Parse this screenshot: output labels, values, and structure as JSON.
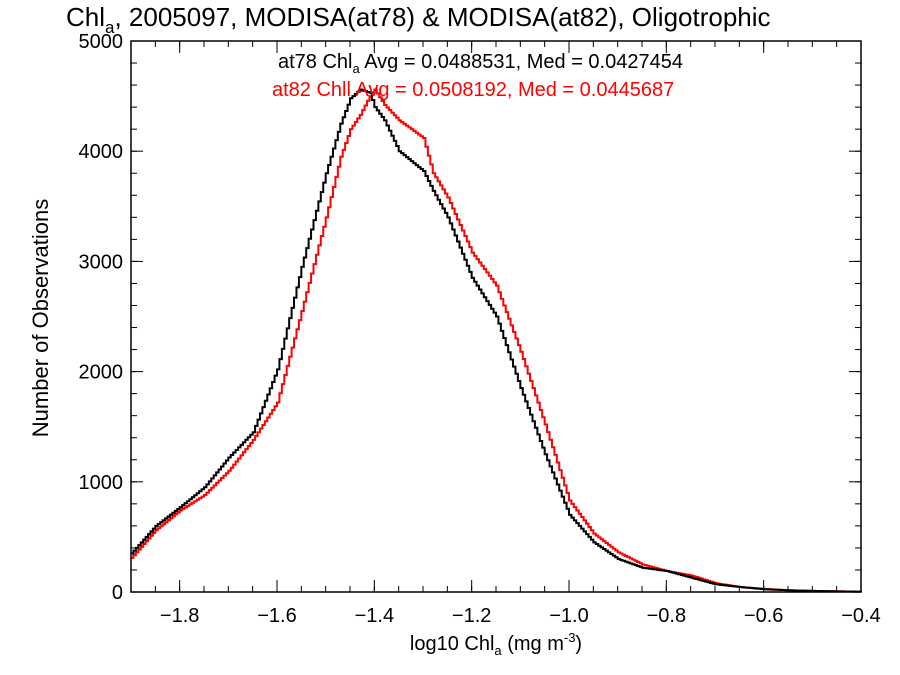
{
  "chart_data": {
    "type": "line",
    "title": {
      "prefix": "Chl",
      "sub": "a",
      "rest": ", 2005097, MODISA(at78) & MODISA(at82), Oligotrophic"
    },
    "xlabel": {
      "prefix": "log10 Chl",
      "sub": "a",
      "units": " (mg m",
      "sup": "-3",
      "close": ")"
    },
    "ylabel": "Number of Observations",
    "xlim": [
      -1.9,
      -0.4
    ],
    "ylim": [
      0,
      5000
    ],
    "xticks": [
      "−1.8",
      "−1.6",
      "−1.4",
      "−1.2",
      "−1.0",
      "−0.8",
      "−0.6",
      "−0.4"
    ],
    "xtick_values": [
      -1.8,
      -1.6,
      -1.4,
      -1.2,
      -1.0,
      -0.8,
      -0.6,
      -0.4
    ],
    "yticks": [
      "0",
      "1000",
      "2000",
      "3000",
      "4000",
      "5000"
    ],
    "ytick_values": [
      0,
      1000,
      2000,
      3000,
      4000,
      5000
    ],
    "legend": [
      {
        "prefix": "at78 Chl",
        "sub": "a",
        "rest": " Avg = 0.0488531, Med = 0.0427454",
        "color": "#000000"
      },
      {
        "prefix": "at82 Chl",
        "sub": "",
        "rest": "l Avg = 0.0508192, Med = 0.0445687",
        "color": "#ff0000"
      }
    ],
    "series": [
      {
        "color": "#000000",
        "x": [
          -1.9,
          -1.85,
          -1.8,
          -1.75,
          -1.7,
          -1.65,
          -1.6,
          -1.55,
          -1.5,
          -1.47,
          -1.45,
          -1.43,
          -1.41,
          -1.4,
          -1.38,
          -1.35,
          -1.3,
          -1.28,
          -1.25,
          -1.2,
          -1.15,
          -1.1,
          -1.05,
          -1.0,
          -0.95,
          -0.9,
          -0.85,
          -0.8,
          -0.75,
          -0.7,
          -0.65,
          -0.6,
          -0.55,
          -0.5,
          -0.45,
          -0.4
        ],
        "y": [
          350,
          600,
          770,
          950,
          1220,
          1450,
          2020,
          2950,
          3800,
          4250,
          4480,
          4560,
          4530,
          4400,
          4280,
          4000,
          3820,
          3640,
          3400,
          2850,
          2500,
          1850,
          1250,
          700,
          450,
          300,
          220,
          190,
          130,
          70,
          45,
          25,
          15,
          10,
          6,
          3
        ]
      },
      {
        "color": "#ff0000",
        "x": [
          -1.9,
          -1.85,
          -1.8,
          -1.75,
          -1.7,
          -1.65,
          -1.6,
          -1.55,
          -1.5,
          -1.47,
          -1.45,
          -1.43,
          -1.41,
          -1.4,
          -1.38,
          -1.35,
          -1.3,
          -1.28,
          -1.25,
          -1.2,
          -1.15,
          -1.1,
          -1.05,
          -1.0,
          -0.95,
          -0.9,
          -0.85,
          -0.8,
          -0.75,
          -0.7,
          -0.65,
          -0.6,
          -0.55,
          -0.5,
          -0.45,
          -0.4
        ],
        "y": [
          310,
          560,
          740,
          880,
          1100,
          1380,
          1720,
          2550,
          3400,
          3950,
          4200,
          4330,
          4500,
          4560,
          4420,
          4280,
          4120,
          3800,
          3580,
          3080,
          2780,
          2180,
          1520,
          830,
          530,
          360,
          250,
          190,
          150,
          80,
          45,
          28,
          16,
          10,
          6,
          3
        ]
      }
    ]
  }
}
